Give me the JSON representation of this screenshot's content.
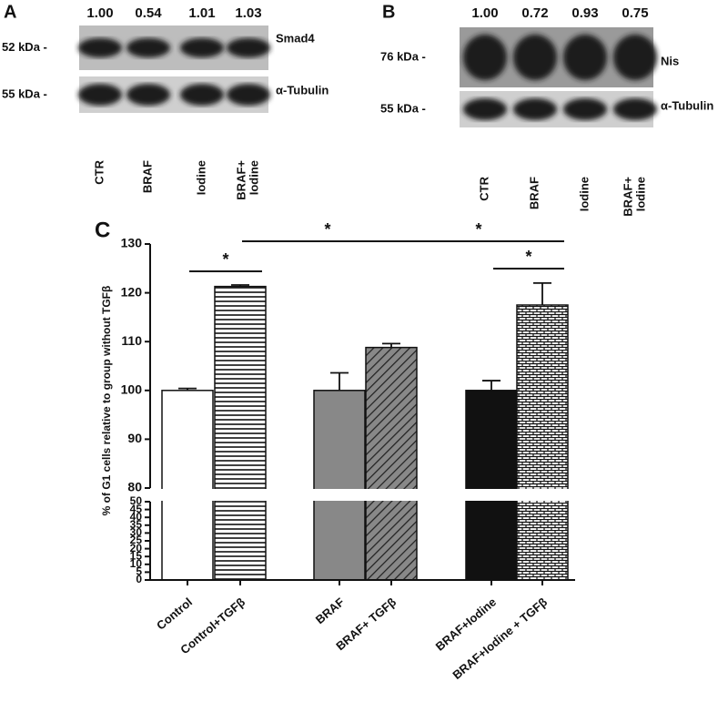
{
  "panel_a": {
    "label": "A",
    "quantities": [
      "1.00",
      "0.54",
      "1.01",
      "1.03"
    ],
    "rows": [
      {
        "size": "52 kDa -",
        "protein": "Smad4"
      },
      {
        "size": "55 kDa -",
        "protein": "α-Tubulin"
      }
    ],
    "lanes": [
      [
        "CTR"
      ],
      [
        "BRAF"
      ],
      [
        "Iodine"
      ],
      [
        "BRAF+",
        "Iodine"
      ]
    ]
  },
  "panel_b": {
    "label": "B",
    "quantities": [
      "1.00",
      "0.72",
      "0.93",
      "0.75"
    ],
    "rows": [
      {
        "size": "76 kDa -",
        "protein": "Nis"
      },
      {
        "size": "55 kDa -",
        "protein": "α-Tubulin"
      }
    ],
    "lanes": [
      [
        "CTR"
      ],
      [
        "BRAF"
      ],
      [
        "Iodine"
      ],
      [
        "BRAF+",
        "Iodine"
      ]
    ]
  },
  "chart_data": {
    "type": "bar",
    "panel_label": "C",
    "y_label": "% of G1 cells relative to group without TGFβ",
    "categories": [
      "Control",
      "Control+TGFβ",
      "BRAF",
      "BRAF+ TGFβ",
      "BRAF+Iodine",
      "BRAF+Iodine + TGFβ"
    ],
    "values": [
      100,
      121.3,
      100,
      108.8,
      100,
      117.5
    ],
    "errors": [
      0.4,
      0.3,
      3.6,
      0.8,
      2,
      4.5
    ],
    "colors": [
      "#ffffff",
      "#ffffff",
      "#888888",
      "#888888",
      "#111111",
      "#ffffff"
    ],
    "patterns": [
      "none",
      "horizontal",
      "none",
      "diagonal",
      "none",
      "brick"
    ],
    "ylim": [
      0,
      130
    ],
    "axis_break": [
      50,
      80
    ],
    "yticks": [
      0,
      5,
      10,
      15,
      20,
      25,
      30,
      35,
      40,
      45,
      50,
      80,
      90,
      100,
      110,
      120,
      130
    ],
    "significance": [
      "*",
      "*",
      "*",
      "*"
    ]
  }
}
